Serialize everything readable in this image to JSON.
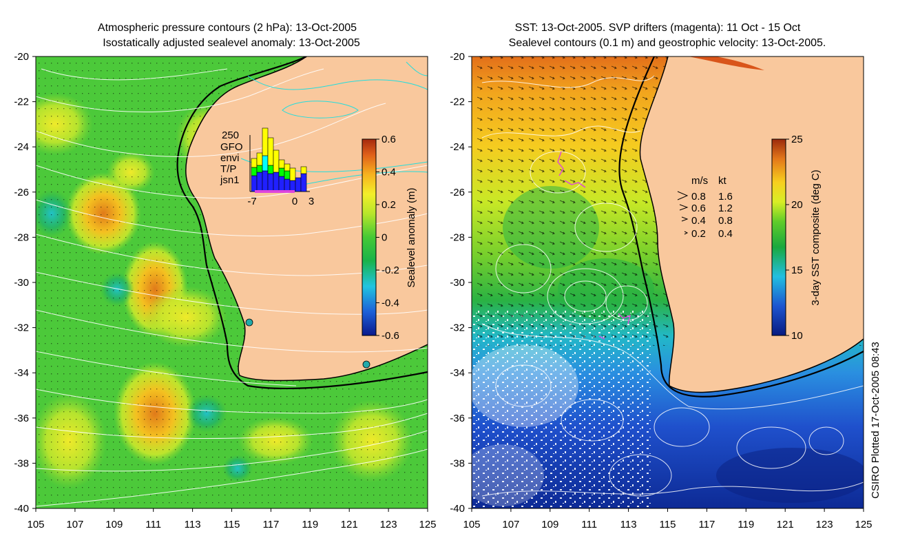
{
  "chart_data": [
    {
      "type": "heatmap",
      "title_line1": "Atmospheric pressure contours (2 hPa): 13-Oct-2005",
      "title_line2": "Isostatically adjusted sealevel anomaly: 13-Oct-2005",
      "xlim": [
        105,
        125
      ],
      "ylim": [
        -40,
        -20
      ],
      "x_ticks": [
        "105",
        "107",
        "109",
        "111",
        "113",
        "115",
        "117",
        "119",
        "121",
        "123",
        "125"
      ],
      "y_ticks": [
        "-20",
        "-22",
        "-24",
        "-26",
        "-28",
        "-30",
        "-32",
        "-34",
        "-36",
        "-38",
        "-40"
      ],
      "colorbar": {
        "label": "Sealevel anomaly (m)",
        "range": [
          -0.6,
          0.6
        ],
        "ticks": [
          "0.6",
          "0.4",
          "0.2",
          "0",
          "-0.2",
          "-0.4",
          "-0.6"
        ]
      },
      "inset": {
        "ymax_label": "250",
        "legend": [
          {
            "name": "GFO",
            "color": "#ffff00"
          },
          {
            "name": "envi",
            "color": "#00ffff"
          },
          {
            "name": "T/P",
            "color": "#00ff00"
          },
          {
            "name": "jsn1",
            "color": "#2020ff"
          }
        ],
        "x_ticks": [
          "-7",
          "0",
          "3"
        ]
      },
      "tide_gauges": [
        {
          "lon": 115.8,
          "lat": -31.8
        },
        {
          "lon": 121.9,
          "lat": -33.7
        }
      ]
    },
    {
      "type": "heatmap",
      "title_line1": "SST: 13-Oct-2005. SVP drifters (magenta): 11 Oct - 15 Oct",
      "title_line2": "Sealevel contours (0.1 m) and geostrophic velocity: 13-Oct-2005.",
      "xlim": [
        105,
        125
      ],
      "ylim": [
        -40,
        -20
      ],
      "x_ticks": [
        "105",
        "107",
        "109",
        "111",
        "113",
        "115",
        "117",
        "119",
        "121",
        "123",
        "125"
      ],
      "y_ticks": [
        "-20",
        "-22",
        "-24",
        "-26",
        "-28",
        "-30",
        "-32",
        "-34",
        "-36",
        "-38",
        "-40"
      ],
      "colorbar": {
        "label": "3-day SST composite (deg C)",
        "range": [
          10,
          25
        ],
        "ticks": [
          "25",
          "20",
          "15",
          "10"
        ]
      },
      "velocity_legend": {
        "header_ms": "m/s",
        "header_kt": "kt",
        "rows": [
          {
            "ms": "0.8",
            "kt": "1.6"
          },
          {
            "ms": "0.6",
            "kt": "1.2"
          },
          {
            "ms": "0.4",
            "kt": "0.8"
          },
          {
            "ms": "0.2",
            "kt": "0.4"
          }
        ]
      }
    }
  ],
  "colors": {
    "land": "#f9c89d",
    "contour_white": "#ffffff",
    "contour_cyan": "#22dddd",
    "coast": "#000000",
    "drifter": "#dd44dd"
  },
  "credit": "CSIRO Plotted 17-Oct-2005 08:43"
}
